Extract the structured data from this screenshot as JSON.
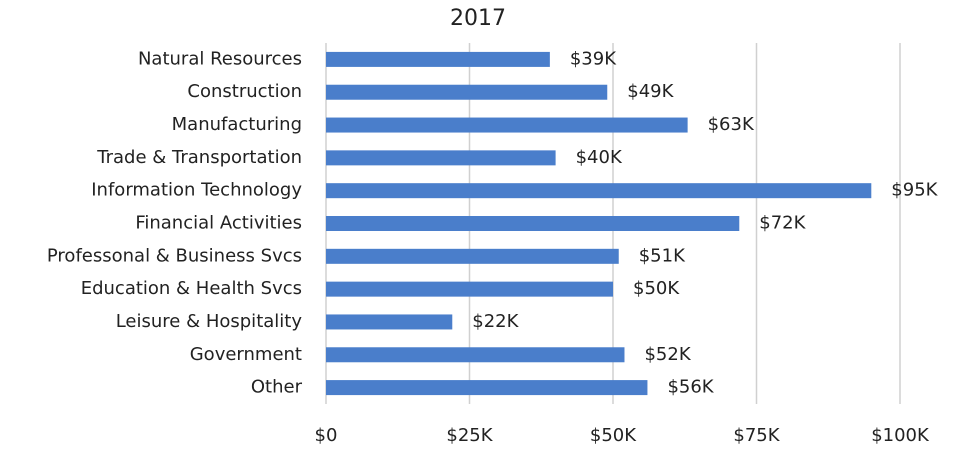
{
  "chart_data": {
    "type": "barh",
    "title": "2017",
    "categories": [
      "Natural Resources",
      "Construction",
      "Manufacturing",
      "Trade & Transportation",
      "Information Technology",
      "Financial Activities",
      "Professonal & Business Svcs",
      "Education & Health Svcs",
      "Leisure & Hospitality",
      "Government",
      "Other"
    ],
    "values": [
      39000,
      49000,
      63000,
      40000,
      95000,
      72000,
      51000,
      50000,
      22000,
      52000,
      56000
    ],
    "value_labels": [
      "$39K",
      "$49K",
      "$63K",
      "$40K",
      "$95K",
      "$72K",
      "$51K",
      "$50K",
      "$22K",
      "$52K",
      "$56K"
    ],
    "color": "#4a7ecb",
    "xlim": [
      0,
      100000
    ],
    "xticks": [
      {
        "value": 0,
        "label": "$0"
      },
      {
        "value": 25000,
        "label": "$25K"
      },
      {
        "value": 50000,
        "label": "$50K"
      },
      {
        "value": 75000,
        "label": "$75K"
      },
      {
        "value": 100000,
        "label": "$100K"
      }
    ],
    "grid": true
  }
}
